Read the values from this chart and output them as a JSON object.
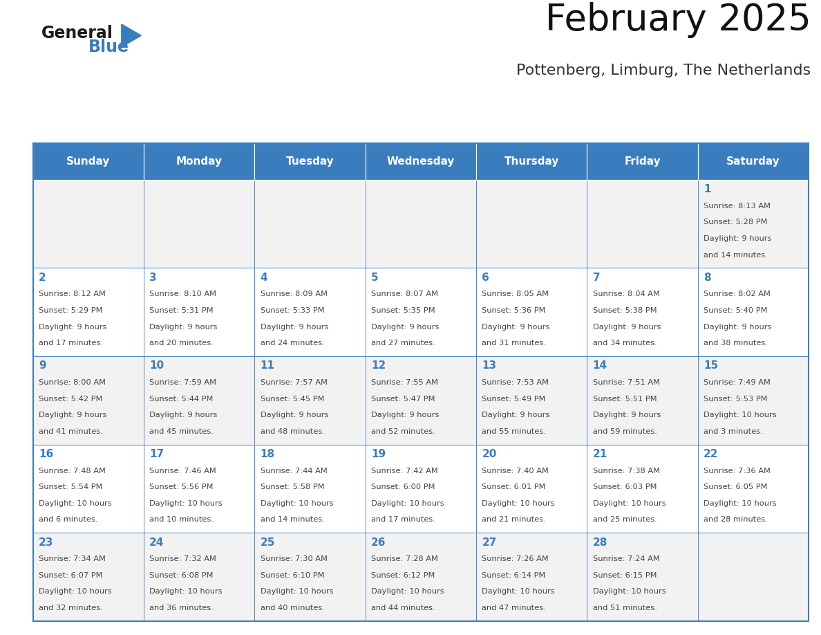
{
  "title": "February 2025",
  "subtitle": "Pottenberg, Limburg, The Netherlands",
  "days_of_week": [
    "Sunday",
    "Monday",
    "Tuesday",
    "Wednesday",
    "Thursday",
    "Friday",
    "Saturday"
  ],
  "header_bg": "#3A7DBF",
  "header_text": "#FFFFFF",
  "cell_bg_odd": "#F2F2F2",
  "cell_bg_even": "#FFFFFF",
  "cell_border": "#3A7DBF",
  "day_number_color": "#3A7DBF",
  "text_color": "#444444",
  "calendar_data": [
    [
      null,
      null,
      null,
      null,
      null,
      null,
      {
        "day": 1,
        "sunrise": "8:13 AM",
        "sunset": "5:28 PM",
        "daylight": "9 hours and 14 minutes"
      }
    ],
    [
      {
        "day": 2,
        "sunrise": "8:12 AM",
        "sunset": "5:29 PM",
        "daylight": "9 hours and 17 minutes"
      },
      {
        "day": 3,
        "sunrise": "8:10 AM",
        "sunset": "5:31 PM",
        "daylight": "9 hours and 20 minutes"
      },
      {
        "day": 4,
        "sunrise": "8:09 AM",
        "sunset": "5:33 PM",
        "daylight": "9 hours and 24 minutes"
      },
      {
        "day": 5,
        "sunrise": "8:07 AM",
        "sunset": "5:35 PM",
        "daylight": "9 hours and 27 minutes"
      },
      {
        "day": 6,
        "sunrise": "8:05 AM",
        "sunset": "5:36 PM",
        "daylight": "9 hours and 31 minutes"
      },
      {
        "day": 7,
        "sunrise": "8:04 AM",
        "sunset": "5:38 PM",
        "daylight": "9 hours and 34 minutes"
      },
      {
        "day": 8,
        "sunrise": "8:02 AM",
        "sunset": "5:40 PM",
        "daylight": "9 hours and 38 minutes"
      }
    ],
    [
      {
        "day": 9,
        "sunrise": "8:00 AM",
        "sunset": "5:42 PM",
        "daylight": "9 hours and 41 minutes"
      },
      {
        "day": 10,
        "sunrise": "7:59 AM",
        "sunset": "5:44 PM",
        "daylight": "9 hours and 45 minutes"
      },
      {
        "day": 11,
        "sunrise": "7:57 AM",
        "sunset": "5:45 PM",
        "daylight": "9 hours and 48 minutes"
      },
      {
        "day": 12,
        "sunrise": "7:55 AM",
        "sunset": "5:47 PM",
        "daylight": "9 hours and 52 minutes"
      },
      {
        "day": 13,
        "sunrise": "7:53 AM",
        "sunset": "5:49 PM",
        "daylight": "9 hours and 55 minutes"
      },
      {
        "day": 14,
        "sunrise": "7:51 AM",
        "sunset": "5:51 PM",
        "daylight": "9 hours and 59 minutes"
      },
      {
        "day": 15,
        "sunrise": "7:49 AM",
        "sunset": "5:53 PM",
        "daylight": "10 hours and 3 minutes"
      }
    ],
    [
      {
        "day": 16,
        "sunrise": "7:48 AM",
        "sunset": "5:54 PM",
        "daylight": "10 hours and 6 minutes"
      },
      {
        "day": 17,
        "sunrise": "7:46 AM",
        "sunset": "5:56 PM",
        "daylight": "10 hours and 10 minutes"
      },
      {
        "day": 18,
        "sunrise": "7:44 AM",
        "sunset": "5:58 PM",
        "daylight": "10 hours and 14 minutes"
      },
      {
        "day": 19,
        "sunrise": "7:42 AM",
        "sunset": "6:00 PM",
        "daylight": "10 hours and 17 minutes"
      },
      {
        "day": 20,
        "sunrise": "7:40 AM",
        "sunset": "6:01 PM",
        "daylight": "10 hours and 21 minutes"
      },
      {
        "day": 21,
        "sunrise": "7:38 AM",
        "sunset": "6:03 PM",
        "daylight": "10 hours and 25 minutes"
      },
      {
        "day": 22,
        "sunrise": "7:36 AM",
        "sunset": "6:05 PM",
        "daylight": "10 hours and 28 minutes"
      }
    ],
    [
      {
        "day": 23,
        "sunrise": "7:34 AM",
        "sunset": "6:07 PM",
        "daylight": "10 hours and 32 minutes"
      },
      {
        "day": 24,
        "sunrise": "7:32 AM",
        "sunset": "6:08 PM",
        "daylight": "10 hours and 36 minutes"
      },
      {
        "day": 25,
        "sunrise": "7:30 AM",
        "sunset": "6:10 PM",
        "daylight": "10 hours and 40 minutes"
      },
      {
        "day": 26,
        "sunrise": "7:28 AM",
        "sunset": "6:12 PM",
        "daylight": "10 hours and 44 minutes"
      },
      {
        "day": 27,
        "sunrise": "7:26 AM",
        "sunset": "6:14 PM",
        "daylight": "10 hours and 47 minutes"
      },
      {
        "day": 28,
        "sunrise": "7:24 AM",
        "sunset": "6:15 PM",
        "daylight": "10 hours and 51 minutes"
      },
      null
    ]
  ],
  "logo_general_color": "#1a1a1a",
  "logo_blue_color": "#3A7DBF",
  "fig_width": 11.88,
  "fig_height": 9.18,
  "dpi": 100
}
